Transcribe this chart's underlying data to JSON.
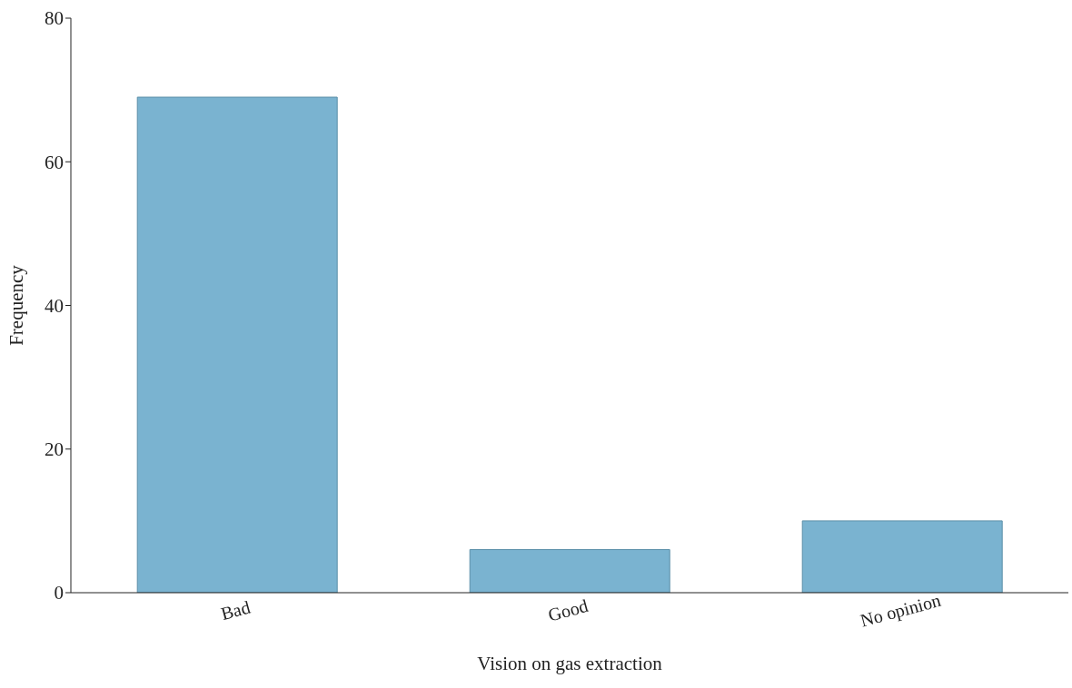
{
  "chart_data": {
    "type": "bar",
    "xlabel": "Vision on gas extraction",
    "ylabel": "Frequency",
    "categories": [
      "Bad",
      "Good",
      "No opinion"
    ],
    "values": [
      69,
      6,
      10
    ],
    "color": "#7ab3d0",
    "ylim": [
      0,
      80
    ],
    "yticks": [
      0,
      20,
      40,
      60,
      80
    ],
    "grid": false,
    "legend": false
  }
}
